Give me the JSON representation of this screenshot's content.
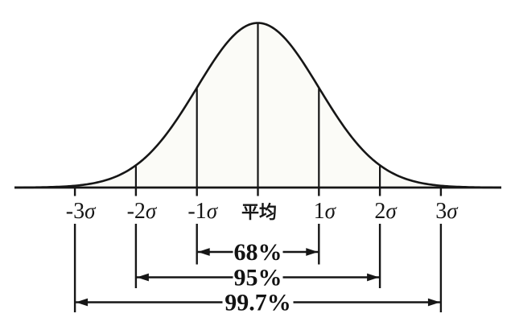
{
  "figure": {
    "background": "#ffffff",
    "ink_color": "#161616",
    "under_curve_fill": "#fbfbf7",
    "label_gap_fill": "#ffffff"
  },
  "chart_data": {
    "type": "area",
    "title": "",
    "description": "Normal distribution bell curve with standard deviation ranges (68-95-99.7 rule), mean labeled in Japanese",
    "curve": {
      "shape": "gaussian",
      "mean_label": "平均",
      "filled": true,
      "gridlines": false
    },
    "x_ticks": [
      {
        "prefix": "-3",
        "sigma": "σ",
        "sigma_value": -3
      },
      {
        "prefix": "-2",
        "sigma": "σ",
        "sigma_value": -2
      },
      {
        "prefix": "-1",
        "sigma": "σ",
        "sigma_value": -1
      },
      {
        "label": "平均",
        "sigma_value": 0
      },
      {
        "prefix": "1",
        "sigma": "σ",
        "sigma_value": 1
      },
      {
        "prefix": "2",
        "sigma": "σ",
        "sigma_value": 2
      },
      {
        "prefix": "3",
        "sigma": "σ",
        "sigma_value": 3
      }
    ],
    "bands": [
      {
        "label": "68%",
        "from_sigma": -1,
        "to_sigma": 1
      },
      {
        "label": "95%",
        "from_sigma": -2,
        "to_sigma": 2
      },
      {
        "label": "99.7%",
        "from_sigma": -3,
        "to_sigma": 3
      }
    ]
  }
}
